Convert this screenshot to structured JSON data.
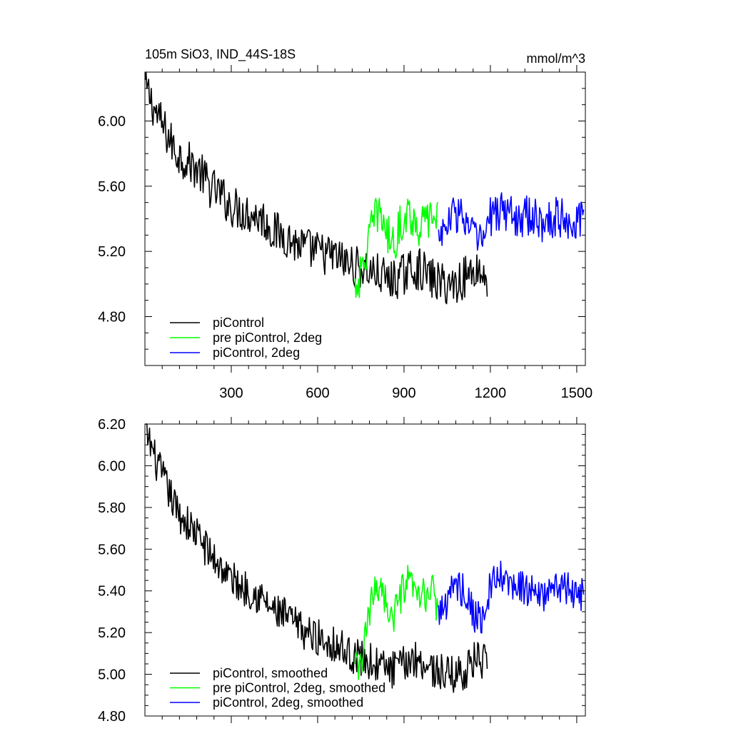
{
  "colors": {
    "black": "#000000",
    "green": "#00ff00",
    "blue": "#0000ff"
  },
  "chart_data": [
    {
      "type": "line",
      "title": "105m SiO3, IND_44S-18S",
      "units": "mmol/m^3",
      "xlim": [
        0,
        1530
      ],
      "ylim": [
        4.5,
        6.3
      ],
      "xticks": [
        300,
        600,
        900,
        1200,
        1500
      ],
      "xtick_labels": [
        "300",
        "600",
        "900",
        "1200",
        "1500"
      ],
      "yticks": [
        4.8,
        5.2,
        5.6,
        6.0
      ],
      "ytick_labels": [
        "4.80",
        "5.20",
        "5.60",
        "6.00"
      ],
      "legend_position": "bottom-left",
      "series": [
        {
          "name": "piControl",
          "color": "#000000",
          "x_start": 1,
          "x_end": 1190,
          "values": [
            6.22,
            6.05,
            5.92,
            5.8,
            5.75,
            5.7,
            5.6,
            5.55,
            5.48,
            5.45,
            5.43,
            5.4,
            5.32,
            5.3,
            5.25,
            5.22,
            5.2,
            5.18,
            5.16,
            5.12,
            5.1,
            5.08,
            5.05,
            5.02,
            5.05,
            5.1,
            5.08,
            5.02,
            5.0,
            5.0,
            5.05,
            5.1,
            5.02
          ]
        },
        {
          "name": "pre piControl, 2deg",
          "color": "#00ff00",
          "x_start": 730,
          "x_end": 1020,
          "values": [
            5.0,
            5.05,
            5.25,
            5.4,
            5.45,
            5.3,
            5.25,
            5.35,
            5.45,
            5.4,
            5.35,
            5.38,
            5.42,
            5.4
          ]
        },
        {
          "name": "piControl, 2deg",
          "color": "#0000ff",
          "x_start": 1020,
          "x_end": 1525,
          "values": [
            5.3,
            5.35,
            5.45,
            5.4,
            5.3,
            5.25,
            5.4,
            5.45,
            5.45,
            5.4,
            5.42,
            5.4,
            5.38,
            5.4,
            5.42,
            5.4,
            5.38,
            5.4
          ]
        }
      ]
    },
    {
      "type": "line",
      "title": "",
      "units": "",
      "xlim": [
        0,
        1530
      ],
      "ylim": [
        4.8,
        6.2
      ],
      "xticks": [
        300,
        600,
        900,
        1200,
        1500
      ],
      "xtick_labels": [],
      "yticks": [
        4.8,
        5.0,
        5.2,
        5.4,
        5.6,
        5.8,
        6.0,
        6.2
      ],
      "ytick_labels": [
        "4.80",
        "5.00",
        "5.20",
        "5.40",
        "5.60",
        "5.80",
        "6.00",
        "6.20"
      ],
      "legend_position": "bottom-left",
      "series": [
        {
          "name": "piControl, smoothed",
          "color": "#000000",
          "x_start": 1,
          "x_end": 1190,
          "values": [
            6.18,
            6.02,
            5.9,
            5.78,
            5.72,
            5.66,
            5.58,
            5.52,
            5.46,
            5.42,
            5.4,
            5.36,
            5.3,
            5.28,
            5.24,
            5.2,
            5.18,
            5.16,
            5.14,
            5.1,
            5.08,
            5.06,
            5.04,
            5.02,
            5.04,
            5.08,
            5.06,
            5.02,
            5.0,
            5.0,
            5.02,
            5.08,
            5.04
          ]
        },
        {
          "name": "pre piControl, 2deg, smoothed",
          "color": "#00ff00",
          "x_start": 730,
          "x_end": 1020,
          "values": [
            5.02,
            5.05,
            5.25,
            5.4,
            5.45,
            5.32,
            5.26,
            5.36,
            5.44,
            5.4,
            5.36,
            5.38,
            5.4,
            5.32
          ]
        },
        {
          "name": "piControl, 2deg, smoothed",
          "color": "#0000ff",
          "x_start": 1020,
          "x_end": 1525,
          "values": [
            5.3,
            5.34,
            5.44,
            5.4,
            5.3,
            5.26,
            5.4,
            5.46,
            5.44,
            5.4,
            5.42,
            5.4,
            5.36,
            5.4,
            5.42,
            5.4,
            5.38,
            5.4
          ]
        }
      ]
    }
  ]
}
